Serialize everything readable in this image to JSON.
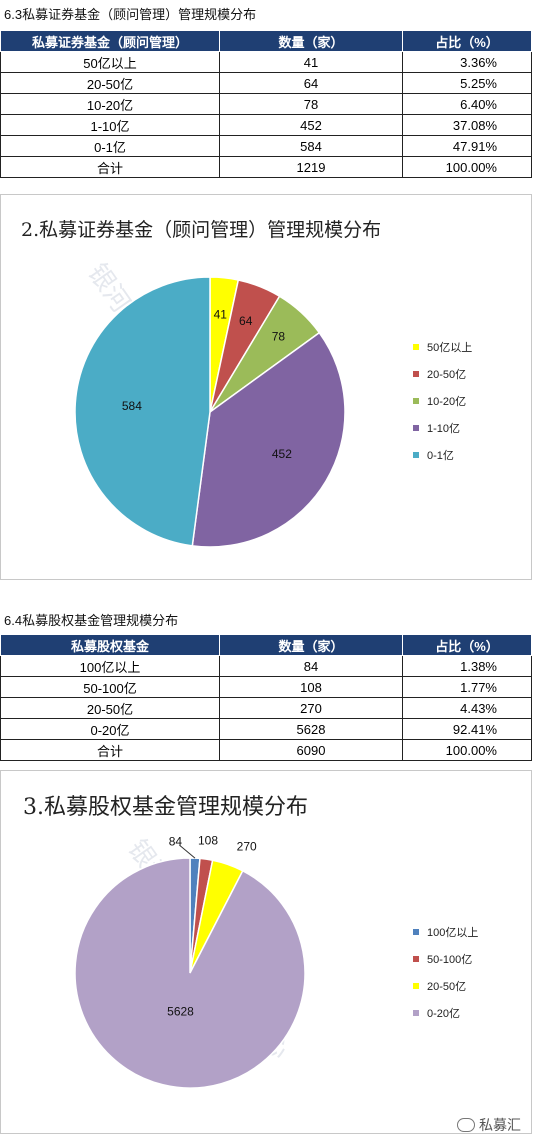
{
  "section1": {
    "title": "6.3私募证券基金（顾问管理）管理规模分布",
    "headers": [
      "私募证券基金（顾问管理）",
      "数量（家）",
      "占比（%）"
    ],
    "rows": [
      [
        "50亿以上",
        "41",
        "3.36%"
      ],
      [
        "20-50亿",
        "64",
        "5.25%"
      ],
      [
        "10-20亿",
        "78",
        "6.40%"
      ],
      [
        "1-10亿",
        "452",
        "37.08%"
      ],
      [
        "0-1亿",
        "584",
        "47.91%"
      ],
      [
        "合计",
        "1219",
        "100.00%"
      ]
    ]
  },
  "section2": {
    "title": "6.4私募股权基金管理规模分布",
    "headers": [
      "私募股权基金",
      "数量（家）",
      "占比（%）"
    ],
    "rows": [
      [
        "100亿以上",
        "84",
        "1.38%"
      ],
      [
        "50-100亿",
        "108",
        "1.77%"
      ],
      [
        "20-50亿",
        "270",
        "4.43%"
      ],
      [
        "0-20亿",
        "5628",
        "92.41%"
      ],
      [
        "合计",
        "6090",
        "100.00%"
      ]
    ]
  },
  "watermark": "银河证券基金研究中心",
  "brand": "私募汇",
  "chart_data": [
    {
      "type": "pie",
      "title": "2.私募证券基金（顾问管理）管理规模分布",
      "categories": [
        "50亿以上",
        "20-50亿",
        "10-20亿",
        "1-10亿",
        "0-1亿"
      ],
      "values": [
        41,
        64,
        78,
        452,
        584
      ],
      "data_labels": [
        "41",
        "64",
        "78",
        "452",
        "584"
      ],
      "colors": [
        "#FFFF00",
        "#C0504D",
        "#9BBB59",
        "#8064A2",
        "#4BACC6"
      ],
      "legend": "right",
      "start": "top, clockwise"
    },
    {
      "type": "pie",
      "title": "3.私募股权基金管理规模分布",
      "categories": [
        "100亿以上",
        "50-100亿",
        "20-50亿",
        "0-20亿"
      ],
      "values": [
        84,
        108,
        270,
        5628
      ],
      "data_labels": [
        "84",
        "108",
        "270",
        "5628"
      ],
      "colors": [
        "#4F81BD",
        "#C0504D",
        "#FFFF00",
        "#B2A1C7"
      ],
      "legend": "right",
      "start": "top, clockwise"
    }
  ]
}
